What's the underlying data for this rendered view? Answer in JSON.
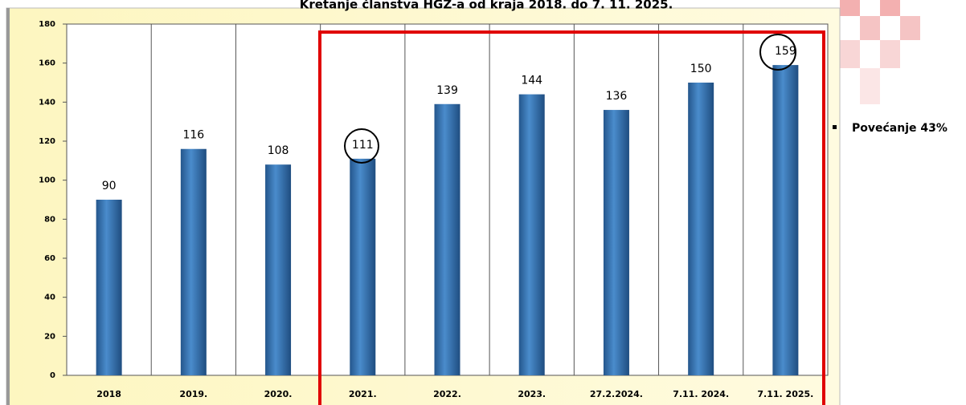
{
  "chart_data": {
    "type": "bar",
    "title": "Kretanje članstva HGZ-a od kraja 2018. do 7. 11. 2025.",
    "categories": [
      "2018",
      "2019.",
      "2020.",
      "2021.",
      "2022.",
      "2023.",
      "27.2.2024.",
      "7.11. 2024.",
      "7.11. 2025."
    ],
    "values": [
      90,
      116,
      108,
      111,
      139,
      144,
      136,
      150,
      159
    ],
    "color": "#3b78b6",
    "ylim": [
      0,
      180
    ],
    "yticks": [
      0,
      20,
      40,
      60,
      80,
      100,
      120,
      140,
      160,
      180
    ],
    "annotation": "Povećanje 43%"
  }
}
